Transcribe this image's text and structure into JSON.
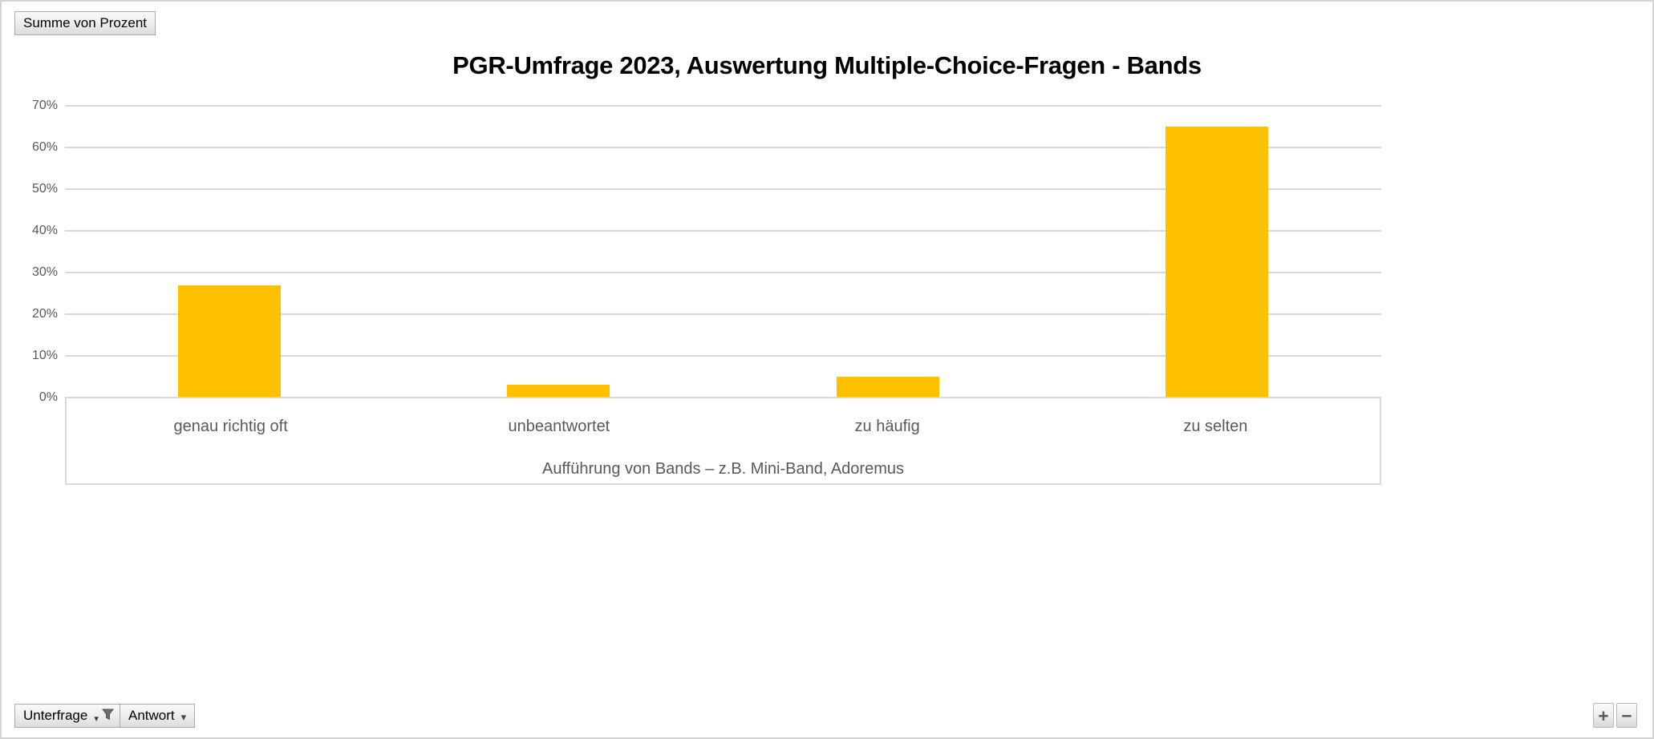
{
  "pivot": {
    "value_field_button": "Summe von Prozent",
    "axis_field_buttons": [
      {
        "label": "Unterfrage",
        "has_filter": true
      },
      {
        "label": "Antwort",
        "has_filter": false
      }
    ],
    "expand_button": "+",
    "collapse_button": "−"
  },
  "icons": {
    "filter_funnel": "filter-funnel-icon",
    "dropdown_arrow": "▾"
  },
  "chart_data": {
    "type": "bar",
    "title": "PGR-Umfrage 2023, Auswertung Multiple-Choice-Fragen - Bands",
    "categories": [
      "genau richtig oft",
      "unbeantwortet",
      "zu häufig",
      "zu selten"
    ],
    "values": [
      27,
      3,
      5,
      65
    ],
    "xlabel": "Aufführung von Bands – z.B. Mini-Band, Adoremus",
    "ylabel": "",
    "ylim": [
      0,
      70
    ],
    "yticks": [
      "0%",
      "10%",
      "20%",
      "30%",
      "40%",
      "50%",
      "60%",
      "70%"
    ],
    "grid": true,
    "legend": false,
    "bar_color": "#FFC000"
  },
  "colors": {
    "bar": "#FFC000",
    "gridline": "#D9D9D9",
    "axis_text": "#595959",
    "title_text": "#000000"
  }
}
